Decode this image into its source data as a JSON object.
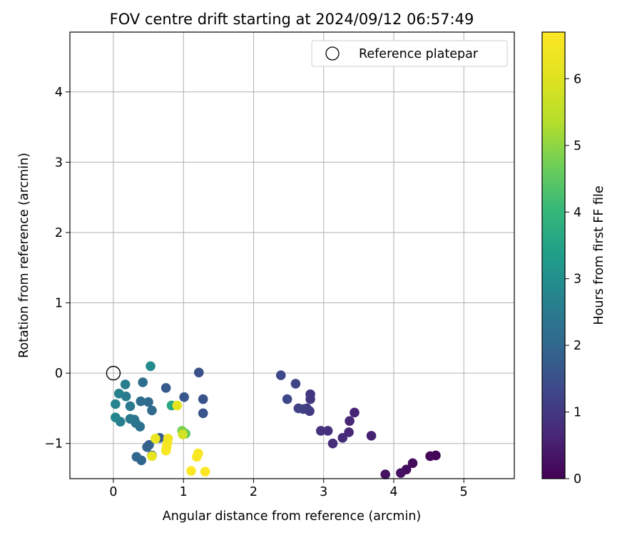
{
  "chart_data": {
    "type": "scatter",
    "title": "FOV centre drift starting at 2024/09/12 06:57:49",
    "xlabel": "Angular distance from reference (arcmin)",
    "ylabel": "Rotation from reference (arcmin)",
    "xlim": [
      -0.62,
      5.72
    ],
    "ylim": [
      -1.5,
      4.85
    ],
    "xticks": [
      "0",
      "1",
      "2",
      "3",
      "4",
      "5"
    ],
    "yticks": [
      "−1",
      "0",
      "1",
      "2",
      "3",
      "4"
    ],
    "grid": true,
    "legend": {
      "placement": "top-right",
      "entries": [
        "Reference platepar"
      ]
    },
    "reference_point": {
      "x": 0,
      "y": 0
    },
    "colorbar": {
      "label": "Hours from first FF file",
      "colormap": "viridis",
      "range": [
        0,
        6.7
      ],
      "ticks": [
        "0",
        "1",
        "2",
        "3",
        "4",
        "5",
        "6"
      ]
    },
    "points": [
      {
        "x": 4.6,
        "y": -1.17,
        "c": 0.05
      },
      {
        "x": 4.52,
        "y": -1.18,
        "c": 0.1
      },
      {
        "x": 4.27,
        "y": -1.28,
        "c": 0.15
      },
      {
        "x": 4.18,
        "y": -1.37,
        "c": 0.2
      },
      {
        "x": 4.1,
        "y": -1.42,
        "c": 0.25
      },
      {
        "x": 3.88,
        "y": -1.44,
        "c": 0.3
      },
      {
        "x": 3.68,
        "y": -0.89,
        "c": 0.55
      },
      {
        "x": 3.44,
        "y": -0.56,
        "c": 0.6
      },
      {
        "x": 3.37,
        "y": -0.68,
        "c": 0.65
      },
      {
        "x": 3.36,
        "y": -0.84,
        "c": 0.7
      },
      {
        "x": 3.27,
        "y": -0.92,
        "c": 0.75
      },
      {
        "x": 3.13,
        "y": -1.0,
        "c": 0.8
      },
      {
        "x": 3.06,
        "y": -0.82,
        "c": 0.85
      },
      {
        "x": 2.96,
        "y": -0.82,
        "c": 0.9
      },
      {
        "x": 2.81,
        "y": -0.3,
        "c": 0.95
      },
      {
        "x": 2.81,
        "y": -0.37,
        "c": 1.0
      },
      {
        "x": 2.8,
        "y": -0.54,
        "c": 1.05
      },
      {
        "x": 2.76,
        "y": -0.5,
        "c": 1.1
      },
      {
        "x": 2.71,
        "y": -0.51,
        "c": 1.15
      },
      {
        "x": 2.64,
        "y": -0.5,
        "c": 1.2
      },
      {
        "x": 2.6,
        "y": -0.15,
        "c": 1.25
      },
      {
        "x": 2.48,
        "y": -0.37,
        "c": 1.3
      },
      {
        "x": 2.39,
        "y": -0.03,
        "c": 1.35
      },
      {
        "x": 1.22,
        "y": 0.01,
        "c": 1.5
      },
      {
        "x": 1.28,
        "y": -0.37,
        "c": 1.55
      },
      {
        "x": 1.28,
        "y": -0.57,
        "c": 1.6
      },
      {
        "x": 1.01,
        "y": -0.34,
        "c": 1.65
      },
      {
        "x": 0.75,
        "y": -0.21,
        "c": 1.7
      },
      {
        "x": 0.66,
        "y": -0.92,
        "c": 1.75
      },
      {
        "x": 0.55,
        "y": -1.17,
        "c": 1.8
      },
      {
        "x": 0.51,
        "y": -1.02,
        "c": 1.85
      },
      {
        "x": 0.48,
        "y": -1.05,
        "c": 1.9
      },
      {
        "x": 0.4,
        "y": -1.24,
        "c": 1.95
      },
      {
        "x": 0.33,
        "y": -1.19,
        "c": 2.0
      },
      {
        "x": 0.55,
        "y": -0.53,
        "c": 2.05
      },
      {
        "x": 0.5,
        "y": -0.41,
        "c": 2.1
      },
      {
        "x": 0.39,
        "y": -0.4,
        "c": 2.15
      },
      {
        "x": 0.42,
        "y": -0.13,
        "c": 2.2
      },
      {
        "x": 0.38,
        "y": -0.76,
        "c": 2.25
      },
      {
        "x": 0.32,
        "y": -0.71,
        "c": 2.3
      },
      {
        "x": 0.3,
        "y": -0.66,
        "c": 2.35
      },
      {
        "x": 0.24,
        "y": -0.65,
        "c": 2.4
      },
      {
        "x": 0.24,
        "y": -0.47,
        "c": 2.45
      },
      {
        "x": 0.18,
        "y": -0.33,
        "c": 2.5
      },
      {
        "x": 0.17,
        "y": -0.16,
        "c": 2.55
      },
      {
        "x": 0.1,
        "y": -0.69,
        "c": 2.6
      },
      {
        "x": 0.08,
        "y": -0.29,
        "c": 2.65
      },
      {
        "x": 0.03,
        "y": -0.44,
        "c": 2.7
      },
      {
        "x": 0.03,
        "y": -0.63,
        "c": 2.75
      },
      {
        "x": 0.53,
        "y": 0.1,
        "c": 2.9
      },
      {
        "x": 0.83,
        "y": -0.46,
        "c": 3.6
      },
      {
        "x": 1.03,
        "y": -0.86,
        "c": 4.5
      },
      {
        "x": 0.98,
        "y": -0.82,
        "c": 4.8
      },
      {
        "x": 0.99,
        "y": -0.87,
        "c": 5.8
      },
      {
        "x": 0.91,
        "y": -0.46,
        "c": 6.1
      },
      {
        "x": 0.55,
        "y": -1.18,
        "c": 6.2
      },
      {
        "x": 0.6,
        "y": -0.93,
        "c": 6.3
      },
      {
        "x": 0.78,
        "y": -0.93,
        "c": 6.4
      },
      {
        "x": 0.77,
        "y": -0.99,
        "c": 6.45
      },
      {
        "x": 0.76,
        "y": -1.05,
        "c": 6.5
      },
      {
        "x": 0.75,
        "y": -1.1,
        "c": 6.55
      },
      {
        "x": 1.21,
        "y": -1.14,
        "c": 6.6
      },
      {
        "x": 1.19,
        "y": -1.19,
        "c": 6.62
      },
      {
        "x": 1.11,
        "y": -1.39,
        "c": 6.65
      },
      {
        "x": 1.31,
        "y": -1.4,
        "c": 6.7
      }
    ]
  }
}
